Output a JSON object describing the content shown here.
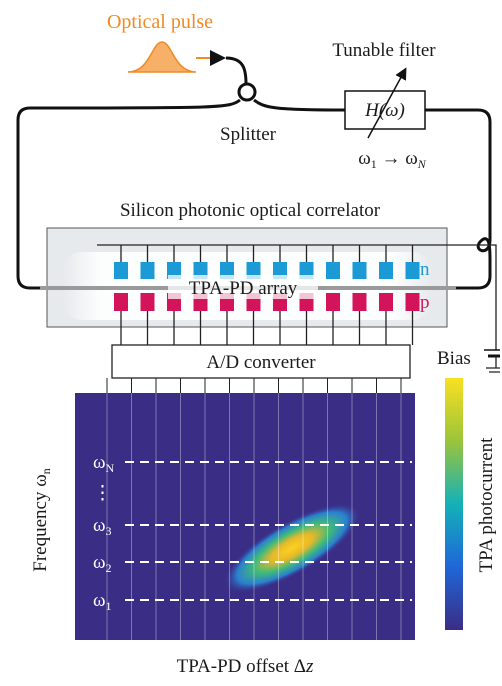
{
  "labels": {
    "input": "Optical pulse",
    "filter": "Tunable filter",
    "filter_function": "H(ω)",
    "splitter": "Splitter",
    "filter_range": [
      "ω",
      "1",
      " → ω",
      "N"
    ],
    "chip": "Silicon photonic optical correlator",
    "array": "TPA-PD array",
    "n": "n",
    "p": "p",
    "converter": "A/D converter",
    "bias": "Bias",
    "y_axis": [
      "Frequency ω",
      "n"
    ],
    "frequencies": [
      [
        "ω",
        "N"
      ],
      [
        "⋮",
        ""
      ],
      [
        "ω",
        "3"
      ],
      [
        "ω",
        "2"
      ],
      [
        "ω",
        "1"
      ]
    ],
    "x_axis": [
      "TPA-PD offset Δ",
      "z"
    ],
    "colorbar": "TPA photocurrent"
  }
}
